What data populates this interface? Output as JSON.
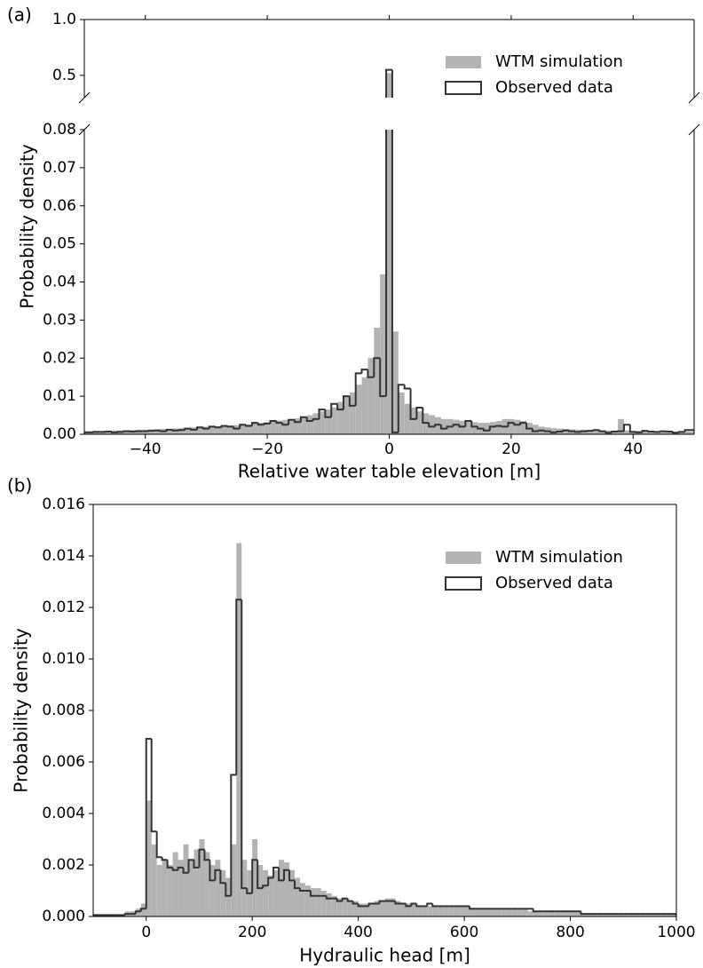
{
  "chart_data": [
    {
      "type": "histogram",
      "panel_label": "(a)",
      "xlabel": "Relative water table elevation [m]",
      "ylabel": "Probability density",
      "legend": "upper right",
      "broken_y": true,
      "xlim": [
        -50,
        50
      ],
      "xticks": [
        {
          "value": -40,
          "label": "−40"
        },
        {
          "value": -20,
          "label": "−20"
        },
        0,
        20,
        40
      ],
      "ylim": [
        0,
        0.08
      ],
      "yticks": [
        {
          "value": 0,
          "label": "0.00"
        },
        {
          "value": 0.01,
          "label": "0.01"
        },
        {
          "value": 0.02,
          "label": "0.02"
        },
        {
          "value": 0.03,
          "label": "0.03"
        },
        {
          "value": 0.04,
          "label": "0.04"
        },
        {
          "value": 0.05,
          "label": "0.05"
        },
        {
          "value": 0.06,
          "label": "0.06"
        },
        {
          "value": 0.07,
          "label": "0.07"
        },
        {
          "value": 0.08,
          "label": "0.08"
        }
      ],
      "ylim_upper": [
        0.3,
        1.0
      ],
      "yticks_upper": [
        0.5,
        {
          "value": 1,
          "label": "1.0"
        }
      ],
      "bins": [
        -50.5,
        -49.5,
        -48.5,
        -47.5,
        -46.5,
        -45.5,
        -44.5,
        -43.5,
        -42.5,
        -41.5,
        -40.5,
        -39.5,
        -38.5,
        -37.5,
        -36.5,
        -35.5,
        -34.5,
        -33.5,
        -32.5,
        -31.5,
        -30.5,
        -29.5,
        -28.5,
        -27.5,
        -26.5,
        -25.5,
        -24.5,
        -23.5,
        -22.5,
        -21.5,
        -20.5,
        -19.5,
        -18.5,
        -17.5,
        -16.5,
        -15.5,
        -14.5,
        -13.5,
        -12.5,
        -11.5,
        -10.5,
        -9.5,
        -8.5,
        -7.5,
        -6.5,
        -5.5,
        -4.5,
        -3.5,
        -2.5,
        -1.5,
        -0.5,
        0.5,
        1.5,
        2.5,
        3.5,
        4.5,
        5.5,
        6.5,
        7.5,
        8.5,
        9.5,
        10.5,
        11.5,
        12.5,
        13.5,
        14.5,
        15.5,
        16.5,
        17.5,
        18.5,
        19.5,
        20.5,
        21.5,
        22.5,
        23.5,
        24.5,
        25.5,
        26.5,
        27.5,
        28.5,
        29.5,
        30.5,
        31.5,
        32.5,
        33.5,
        34.5,
        35.5,
        36.5,
        37.5,
        38.5,
        39.5,
        40.5,
        41.5,
        42.5,
        43.5,
        44.5,
        45.5,
        46.5,
        47.5,
        48.5,
        49.5,
        50.5
      ],
      "series": [
        {
          "name": "WTM simulation",
          "color": "#b3b3b3",
          "histtype": "bar",
          "values": [
            0.0008,
            0.0008,
            0.0009,
            0.0009,
            0.001,
            0.001,
            0.001,
            0.0011,
            0.0011,
            0.0012,
            0.0012,
            0.0013,
            0.0013,
            0.0014,
            0.0014,
            0.0015,
            0.0016,
            0.0017,
            0.0018,
            0.0019,
            0.002,
            0.002,
            0.0021,
            0.0022,
            0.0023,
            0.0024,
            0.0025,
            0.0026,
            0.0028,
            0.003,
            0.0032,
            0.0034,
            0.0036,
            0.0038,
            0.004,
            0.0042,
            0.0045,
            0.005,
            0.0055,
            0.006,
            0.0065,
            0.007,
            0.0085,
            0.01,
            0.011,
            0.013,
            0.015,
            0.02,
            0.028,
            0.042,
            0.52,
            0.027,
            0.011,
            0.008,
            0.007,
            0.006,
            0.0055,
            0.005,
            0.0045,
            0.004,
            0.004,
            0.0038,
            0.0035,
            0.0033,
            0.0032,
            0.003,
            0.003,
            0.0032,
            0.0035,
            0.004,
            0.004,
            0.0038,
            0.0035,
            0.003,
            0.0025,
            0.002,
            0.0018,
            0.0016,
            0.0015,
            0.0014,
            0.0013,
            0.0012,
            0.0012,
            0.0011,
            0.0011,
            0.001,
            0.001,
            0.001,
            0.004,
            0.001,
            0.0009,
            0.0009,
            0.0009,
            0.0008,
            0.0008,
            0.0008,
            0.0008,
            0.0007,
            0.0007,
            0.0007,
            0.0007
          ]
        },
        {
          "name": "Observed data",
          "color": "#333333",
          "histtype": "step",
          "values": [
            0.0005,
            0.0005,
            0.0006,
            0.0006,
            0.0007,
            0.0005,
            0.0006,
            0.0008,
            0.0007,
            0.0008,
            0.0008,
            0.0009,
            0.001,
            0.0008,
            0.0012,
            0.001,
            0.0011,
            0.0015,
            0.0012,
            0.0018,
            0.0015,
            0.002,
            0.0018,
            0.0022,
            0.002,
            0.0015,
            0.0025,
            0.0022,
            0.003,
            0.0025,
            0.0028,
            0.0035,
            0.003,
            0.0025,
            0.0038,
            0.0032,
            0.0045,
            0.0035,
            0.004,
            0.0065,
            0.0045,
            0.008,
            0.0065,
            0.01,
            0.0075,
            0.016,
            0.017,
            0.015,
            0.02,
            0.01,
            0.55,
            0.0005,
            0.013,
            0.012,
            0.004,
            0.007,
            0.003,
            0.002,
            0.0025,
            0.0015,
            0.002,
            0.0025,
            0.002,
            0.0035,
            0.002,
            0.0015,
            0.001,
            0.002,
            0.0022,
            0.002,
            0.003,
            0.0025,
            0.003,
            0.0015,
            0.0008,
            0.001,
            0.0008,
            0.0005,
            0.0007,
            0.001,
            0.0008,
            0.0006,
            0.0008,
            0.0009,
            0.0011,
            0.0008,
            0.0004,
            0.0007,
            0.0008,
            0.0025,
            0.0006,
            0.0005,
            0.0009,
            0.0007,
            0.0006,
            0.0008,
            0.0007,
            0.0004,
            0.0006,
            0.0011,
            0.0011
          ]
        }
      ]
    },
    {
      "type": "histogram",
      "panel_label": "(b)",
      "xlabel": "Hydraulic head [m]",
      "ylabel": "Probability density",
      "legend": "upper right",
      "xlim": [
        -100,
        1000
      ],
      "xticks": [
        0,
        200,
        400,
        600,
        800,
        1000
      ],
      "ylim": [
        0,
        0.016
      ],
      "yticks": [
        {
          "value": 0,
          "label": "0.000"
        },
        {
          "value": 0.002,
          "label": "0.002"
        },
        {
          "value": 0.004,
          "label": "0.004"
        },
        {
          "value": 0.006,
          "label": "0.006"
        },
        {
          "value": 0.008,
          "label": "0.008"
        },
        {
          "value": 0.01,
          "label": "0.010"
        },
        {
          "value": 0.012,
          "label": "0.012"
        },
        {
          "value": 0.014,
          "label": "0.014"
        },
        {
          "value": 0.016,
          "label": "0.016"
        }
      ],
      "bins": [
        -100,
        -90,
        -80,
        -70,
        -60,
        -50,
        -40,
        -30,
        -20,
        -10,
        0,
        10,
        20,
        30,
        40,
        50,
        60,
        70,
        80,
        90,
        100,
        110,
        120,
        130,
        140,
        150,
        160,
        170,
        180,
        190,
        200,
        210,
        220,
        230,
        240,
        250,
        260,
        270,
        280,
        290,
        300,
        310,
        320,
        330,
        340,
        350,
        360,
        370,
        380,
        390,
        400,
        410,
        420,
        430,
        440,
        450,
        460,
        470,
        480,
        490,
        500,
        510,
        520,
        530,
        540,
        550,
        560,
        570,
        580,
        590,
        600,
        610,
        620,
        630,
        640,
        650,
        660,
        670,
        680,
        690,
        700,
        710,
        720,
        730,
        740,
        750,
        760,
        770,
        780,
        790,
        800,
        810,
        820,
        830,
        840,
        850,
        860,
        870,
        880,
        890,
        900,
        910,
        920,
        930,
        940,
        950,
        960,
        970,
        980,
        990,
        1000
      ],
      "series": [
        {
          "name": "WTM simulation",
          "color": "#b3b3b3",
          "histtype": "bar",
          "values": [
            0.0001,
            0.0001,
            0.0001,
            0.0001,
            0.0001,
            0.0001,
            0.0002,
            0.0002,
            0.0003,
            0.0005,
            0.0045,
            0.0028,
            0.002,
            0.0022,
            0.002,
            0.0025,
            0.0022,
            0.0028,
            0.0022,
            0.0026,
            0.003,
            0.0025,
            0.002,
            0.0022,
            0.0018,
            0.0015,
            0.0028,
            0.0145,
            0.0022,
            0.0018,
            0.003,
            0.002,
            0.0018,
            0.0016,
            0.0018,
            0.0022,
            0.0021,
            0.0018,
            0.0015,
            0.0013,
            0.0012,
            0.0011,
            0.0011,
            0.001,
            0.0009,
            0.0008,
            0.0007,
            0.0007,
            0.0006,
            0.0006,
            0.0005,
            0.0005,
            0.0005,
            0.0006,
            0.0006,
            0.0007,
            0.0007,
            0.0006,
            0.0005,
            0.0005,
            0.0005,
            0.0004,
            0.0004,
            0.0004,
            0.0004,
            0.0004,
            0.0004,
            0.0004,
            0.0004,
            0.0004,
            0.0004,
            0.0003,
            0.0003,
            0.0003,
            0.0003,
            0.0003,
            0.0003,
            0.0003,
            0.0003,
            0.0003,
            0.0003,
            0.0003,
            0.0002,
            0.0002,
            0.0002,
            0.0002,
            0.0002,
            0.0002,
            0.0002,
            0.0002,
            0.0002,
            0.0002,
            0.0001,
            0.0001,
            0.0001,
            0.0001,
            0.0001,
            0.0001,
            0.0001,
            0.0001,
            0.0001,
            0.0001,
            0.0001,
            0.0001,
            0.0001,
            0.0001,
            0.0001,
            0.0001,
            0.0001,
            0.0001
          ]
        },
        {
          "name": "Observed data",
          "color": "#333333",
          "histtype": "step",
          "values": [
            5e-05,
            5e-05,
            5e-05,
            5e-05,
            5e-05,
            5e-05,
            0.0001,
            0.0001,
            0.0002,
            0.0003,
            0.0069,
            0.0033,
            0.0023,
            0.0022,
            0.0019,
            0.0018,
            0.0019,
            0.0017,
            0.0022,
            0.0019,
            0.0026,
            0.0022,
            0.0014,
            0.0018,
            0.0013,
            0.0008,
            0.0055,
            0.0123,
            0.0011,
            0.0009,
            0.0022,
            0.0011,
            0.0012,
            0.0015,
            0.0019,
            0.0014,
            0.0018,
            0.0014,
            0.0011,
            0.001,
            0.001,
            0.0008,
            0.0008,
            0.0008,
            0.0007,
            0.0007,
            0.0006,
            0.0007,
            0.0006,
            0.0005,
            0.0004,
            0.0004,
            0.0005,
            0.0005,
            0.0006,
            0.0006,
            0.0006,
            0.0005,
            0.0005,
            0.0004,
            0.0005,
            0.0004,
            0.0004,
            0.0005,
            0.0004,
            0.0004,
            0.0004,
            0.0004,
            0.0004,
            0.0004,
            0.0004,
            0.0003,
            0.0003,
            0.0003,
            0.0003,
            0.0003,
            0.0003,
            0.0003,
            0.0003,
            0.0003,
            0.0003,
            0.0003,
            0.0003,
            0.0002,
            0.0002,
            0.0002,
            0.0002,
            0.0002,
            0.0002,
            0.0002,
            0.0002,
            0.0002,
            0.0001,
            0.0001,
            0.0001,
            0.0001,
            0.0001,
            0.0001,
            0.0001,
            0.0001,
            0.0001,
            0.0001,
            0.0001,
            0.0001,
            0.0001,
            0.0001,
            0.0001,
            0.0001,
            0.0001,
            0.0001
          ]
        }
      ]
    }
  ]
}
